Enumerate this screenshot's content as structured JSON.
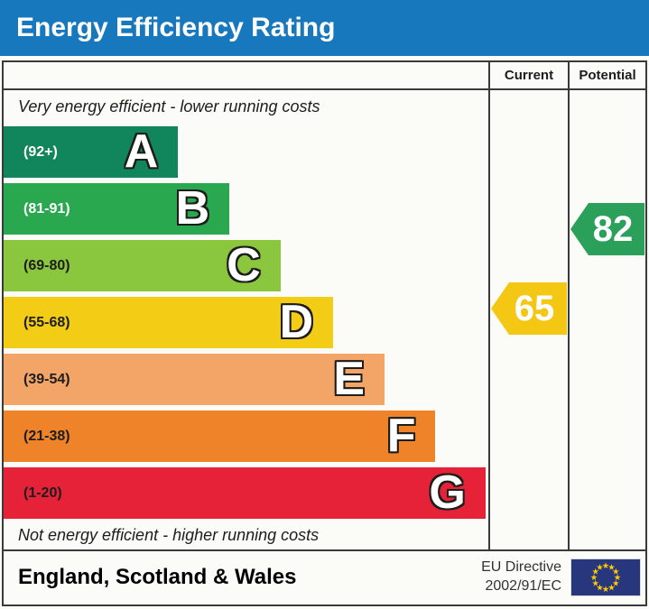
{
  "header": {
    "title": "Energy Efficiency Rating",
    "bg": "#1878be"
  },
  "columns": {
    "current": "Current",
    "potential": "Potential"
  },
  "captions": {
    "top": "Very energy efficient - lower running costs",
    "bottom": "Not energy efficient - higher running costs"
  },
  "chart_data": {
    "type": "bar",
    "title": "Energy Efficiency Rating",
    "bands": [
      {
        "letter": "A",
        "range_label": "(92+)",
        "min": 92,
        "max": 100,
        "color": "#11855c",
        "range_text_color": "#ffffff",
        "width_pct": 36.0
      },
      {
        "letter": "B",
        "range_label": "(81-91)",
        "min": 81,
        "max": 91,
        "color": "#2aa84f",
        "range_text_color": "#ffffff",
        "width_pct": 46.6
      },
      {
        "letter": "C",
        "range_label": "(69-80)",
        "min": 69,
        "max": 80,
        "color": "#8bc63f",
        "range_text_color": "#1d1d1d",
        "width_pct": 57.1
      },
      {
        "letter": "D",
        "range_label": "(55-68)",
        "min": 55,
        "max": 68,
        "color": "#f3cd15",
        "range_text_color": "#1d1d1d",
        "width_pct": 68.0
      },
      {
        "letter": "E",
        "range_label": "(39-54)",
        "min": 39,
        "max": 54,
        "color": "#f2a566",
        "range_text_color": "#1d1d1d",
        "width_pct": 78.6
      },
      {
        "letter": "F",
        "range_label": "(21-38)",
        "min": 21,
        "max": 38,
        "color": "#ee8329",
        "range_text_color": "#1d1d1d",
        "width_pct": 89.1
      },
      {
        "letter": "G",
        "range_label": "(1-20)",
        "min": 1,
        "max": 20,
        "color": "#e52238",
        "range_text_color": "#1d1d1d",
        "width_pct": 99.4
      }
    ],
    "current": {
      "value": 65,
      "color": "#f3c713"
    },
    "potential": {
      "value": 82,
      "color": "#2aa05a"
    }
  },
  "footer": {
    "region": "England, Scotland & Wales",
    "directive_line1": "EU Directive",
    "directive_line2": "2002/91/EC",
    "flag": {
      "name": "eu-flag",
      "bg": "#28367e",
      "star": "#ffcc00"
    }
  }
}
